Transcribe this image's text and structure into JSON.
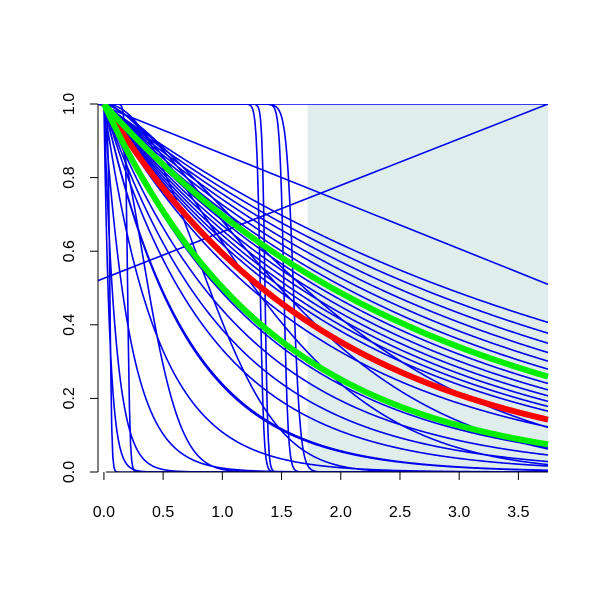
{
  "chart_data": {
    "type": "line",
    "title": "",
    "xlabel": "",
    "ylabel": "",
    "xlim": [
      -0.05,
      3.75
    ],
    "ylim": [
      0.0,
      1.0
    ],
    "x_ticks": [
      "0.0",
      "0.5",
      "1.0",
      "1.5",
      "2.0",
      "2.5",
      "3.0",
      "3.5"
    ],
    "y_ticks": [
      "0.0",
      "0.2",
      "0.4",
      "0.6",
      "0.8",
      "1.0"
    ],
    "shaded_region": {
      "x_from": 1.72,
      "x_to": 3.75,
      "color": "#dfeded"
    },
    "grid": false,
    "legend": "none",
    "colors": {
      "curves": "#0000ee",
      "red": "#ff0000",
      "green": "#00ee00"
    },
    "series": [
      {
        "kind": "exp",
        "rate": 0.26,
        "color": "#0000ee"
      },
      {
        "kind": "exp",
        "rate": 0.24,
        "color": "#0000ee"
      },
      {
        "kind": "exp",
        "rate": 0.28,
        "color": "#0000ee"
      },
      {
        "kind": "exp",
        "rate": 0.3,
        "color": "#0000ee"
      },
      {
        "kind": "exp",
        "rate": 0.32,
        "color": "#0000ee"
      },
      {
        "kind": "exp",
        "rate": 0.34,
        "color": "#0000ee"
      },
      {
        "kind": "exp",
        "rate": 0.36,
        "color": "#0000ee"
      },
      {
        "kind": "exp",
        "rate": 0.38,
        "color": "#0000ee"
      },
      {
        "kind": "exp",
        "rate": 0.4,
        "color": "#0000ee"
      },
      {
        "kind": "exp",
        "rate": 0.42,
        "color": "#0000ee"
      },
      {
        "kind": "exp",
        "rate": 0.44,
        "color": "#0000ee"
      },
      {
        "kind": "exp",
        "rate": 0.46,
        "color": "#0000ee"
      },
      {
        "kind": "exp",
        "rate": 0.48,
        "color": "#0000ee"
      },
      {
        "kind": "exp",
        "rate": 0.56,
        "color": "#0000ee"
      },
      {
        "kind": "exp",
        "rate": 0.72,
        "color": "#0000ee"
      },
      {
        "kind": "exp",
        "rate": 0.82,
        "color": "#0000ee"
      },
      {
        "kind": "exp",
        "rate": 0.95,
        "color": "#0000ee"
      },
      {
        "kind": "exp",
        "rate": 1.1,
        "color": "#0000ee"
      },
      {
        "kind": "exp",
        "rate": 1.45,
        "color": "#0000ee"
      },
      {
        "kind": "weibull",
        "scale": 0.1,
        "shape": 1.0,
        "color": "#0000ee"
      },
      {
        "kind": "weibull",
        "scale": 0.22,
        "shape": 1.0,
        "color": "#0000ee"
      },
      {
        "kind": "weibull",
        "scale": 0.45,
        "shape": 1.0,
        "color": "#0000ee"
      },
      {
        "kind": "weibull",
        "scale": 0.7,
        "shape": 1.0,
        "color": "#0000ee"
      },
      {
        "kind": "weibull",
        "scale": 0.05,
        "shape": 1.0,
        "color": "#0000ee"
      },
      {
        "kind": "weibull",
        "scale": 1.6,
        "shape": 1.6,
        "color": "#0000ee"
      },
      {
        "kind": "weibull",
        "scale": 1.9,
        "shape": 1.5,
        "color": "#0000ee"
      },
      {
        "kind": "weibull",
        "scale": 2.2,
        "shape": 1.4,
        "color": "#0000ee"
      },
      {
        "kind": "weibull",
        "scale": 1.05,
        "shape": 2.2,
        "color": "#0000ee"
      },
      {
        "kind": "weibull",
        "scale": 0.45,
        "shape": 2.0,
        "color": "#0000ee"
      },
      {
        "kind": "step",
        "loc": 1.32,
        "width": 0.015,
        "color": "#0000ee"
      },
      {
        "kind": "step",
        "loc": 1.36,
        "width": 0.012,
        "color": "#0000ee"
      },
      {
        "kind": "step",
        "loc": 1.6,
        "width": 0.03,
        "color": "#0000ee"
      },
      {
        "kind": "step",
        "loc": 1.52,
        "width": 0.018,
        "color": "#0000ee"
      },
      {
        "kind": "step",
        "loc": 0.2,
        "width": 0.01,
        "color": "#0000ee"
      },
      {
        "kind": "step",
        "loc": 0.05,
        "width": 0.008,
        "color": "#0000ee"
      },
      {
        "kind": "linear",
        "x": [
          -0.05,
          3.75
        ],
        "y": [
          0.52,
          1.0
        ],
        "color": "#0000ee"
      },
      {
        "kind": "linear",
        "x": [
          -0.05,
          3.75
        ],
        "y": [
          1.0,
          0.51
        ],
        "color": "#0000ee"
      },
      {
        "kind": "linear",
        "x": [
          -0.05,
          3.75
        ],
        "y": [
          1.0,
          1.0
        ],
        "color": "#0000ee"
      },
      {
        "kind": "exp",
        "rate": 0.52,
        "color": "#ff0000",
        "thick": true
      },
      {
        "kind": "exp",
        "rate": 0.36,
        "color": "#00ee00",
        "thick": true
      },
      {
        "kind": "exp",
        "rate": 0.69,
        "color": "#00ee00",
        "thick": true
      }
    ]
  }
}
